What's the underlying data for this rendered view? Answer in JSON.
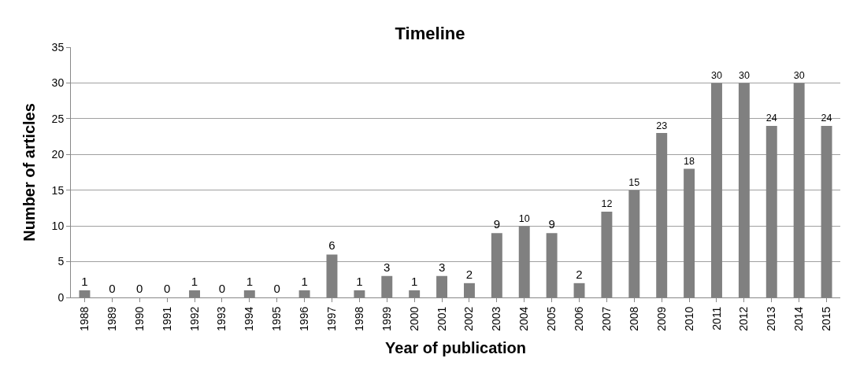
{
  "chart_data": {
    "type": "bar",
    "title": "Timeline",
    "xlabel": "Year of publication",
    "ylabel": "Number of articles",
    "categories": [
      "1988",
      "1989",
      "1990",
      "1991",
      "1992",
      "1993",
      "1994",
      "1995",
      "1996",
      "1997",
      "1998",
      "1999",
      "2000",
      "2001",
      "2002",
      "2003",
      "2004",
      "2005",
      "2006",
      "2007",
      "2008",
      "2009",
      "2010",
      "2011",
      "2012",
      "2013",
      "2014",
      "2015"
    ],
    "values": [
      1,
      0,
      0,
      0,
      1,
      0,
      1,
      0,
      1,
      6,
      1,
      3,
      1,
      3,
      2,
      9,
      10,
      9,
      2,
      12,
      15,
      23,
      18,
      30,
      30,
      24,
      30,
      24
    ],
    "color": "#808080",
    "ylim": [
      0,
      35
    ],
    "yticks": [
      0,
      5,
      10,
      15,
      20,
      25,
      30,
      35
    ],
    "grid": "y",
    "data_labels": true
  }
}
